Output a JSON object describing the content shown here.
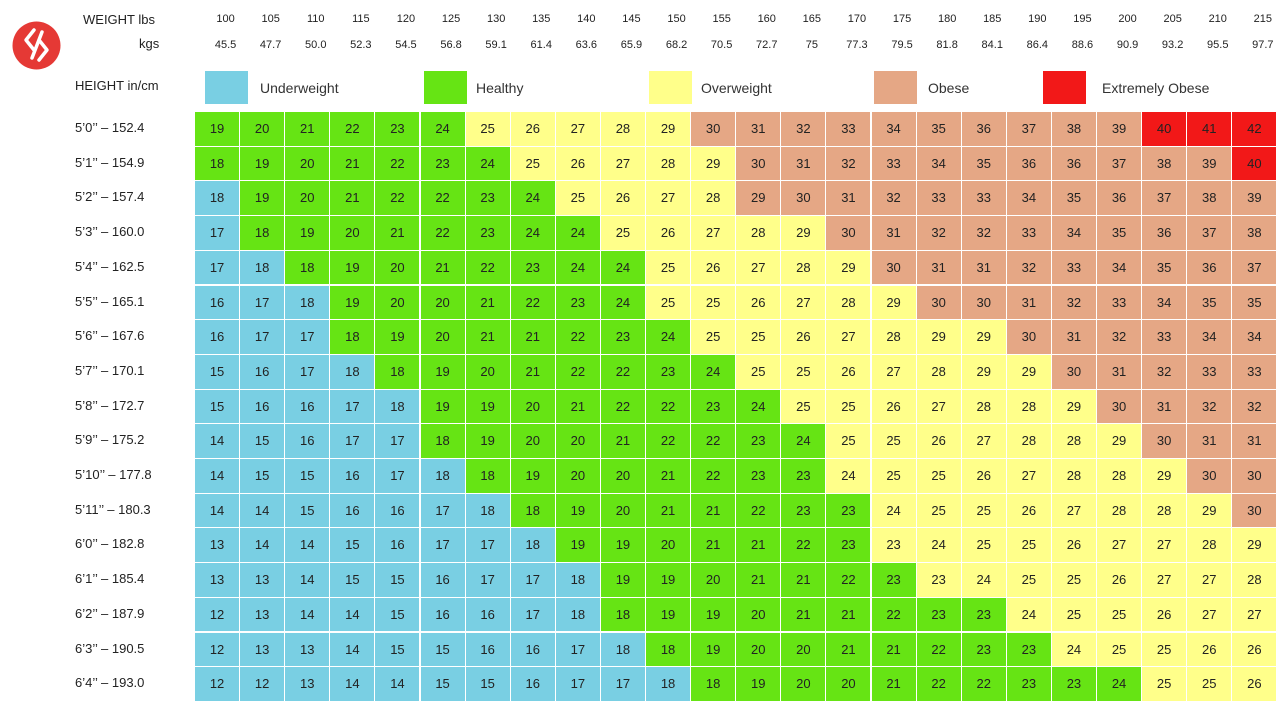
{
  "header": {
    "weight_lbs_label": "WEIGHT lbs",
    "weight_kgs_label": "kgs",
    "height_label": "HEIGHT in/cm"
  },
  "colors": {
    "underweight": "#79CFE3",
    "healthy": "#66E414",
    "overweight": "#FFFF8A",
    "obese": "#E5A785",
    "extremely_obese": "#F21818",
    "logo": "#E53935"
  },
  "logo_icon": "logo-icon",
  "chart_data": {
    "type": "heatmap",
    "title": "",
    "x_lbs": [
      "100",
      "105",
      "110",
      "115",
      "120",
      "125",
      "130",
      "135",
      "140",
      "145",
      "150",
      "155",
      "160",
      "165",
      "170",
      "175",
      "180",
      "185",
      "190",
      "195",
      "200",
      "205",
      "210",
      "215"
    ],
    "x_kgs": [
      "45.5",
      "47.7",
      "50.0",
      "52.3",
      "54.5",
      "56.8",
      "59.1",
      "61.4",
      "63.6",
      "65.9",
      "68.2",
      "70.5",
      "72.7",
      "75",
      "77.3",
      "79.5",
      "81.8",
      "84.1",
      "86.4",
      "88.6",
      "90.9",
      "93.2",
      "95.5",
      "97.7"
    ],
    "y_labels": [
      "5’0’’ – 152.4",
      "5’1’’ – 154.9",
      "5’2’’ – 157.4",
      "5’3’’ – 160.0",
      "5’4’’ – 162.5",
      "5’5’’ – 165.1",
      "5’6’’ – 167.6",
      "5’7’’ – 170.1",
      "5’8’’ – 172.7",
      "5’9’’ – 175.2",
      "5’10’’ – 177.8",
      "5’11’’ – 180.3",
      "6’0’’ – 182.8",
      "6’1’’ – 185.4",
      "6’2’’ – 187.9",
      "6’3’’ – 190.5",
      "6’4’’ – 193.0"
    ],
    "legend": [
      {
        "key": "U",
        "label": "Underweight"
      },
      {
        "key": "H",
        "label": "Healthy"
      },
      {
        "key": "O",
        "label": "Overweight"
      },
      {
        "key": "B",
        "label": "Obese"
      },
      {
        "key": "E",
        "label": "Extremely Obese"
      }
    ],
    "values": [
      [
        19,
        20,
        21,
        22,
        23,
        24,
        25,
        26,
        27,
        28,
        29,
        30,
        31,
        32,
        33,
        34,
        35,
        36,
        37,
        38,
        39,
        40,
        41,
        42
      ],
      [
        18,
        19,
        20,
        21,
        22,
        23,
        24,
        25,
        26,
        27,
        28,
        29,
        30,
        31,
        32,
        33,
        34,
        35,
        36,
        36,
        37,
        38,
        39,
        40
      ],
      [
        18,
        19,
        20,
        21,
        22,
        22,
        23,
        24,
        25,
        26,
        27,
        28,
        29,
        30,
        31,
        32,
        33,
        33,
        34,
        35,
        36,
        37,
        38,
        39
      ],
      [
        17,
        18,
        19,
        20,
        21,
        22,
        23,
        24,
        24,
        25,
        26,
        27,
        28,
        29,
        30,
        31,
        32,
        32,
        33,
        34,
        35,
        36,
        37,
        38
      ],
      [
        17,
        18,
        18,
        19,
        20,
        21,
        22,
        23,
        24,
        24,
        25,
        26,
        27,
        28,
        29,
        30,
        31,
        31,
        32,
        33,
        34,
        35,
        36,
        37
      ],
      [
        16,
        17,
        18,
        19,
        20,
        20,
        21,
        22,
        23,
        24,
        25,
        25,
        26,
        27,
        28,
        29,
        30,
        30,
        31,
        32,
        33,
        34,
        35,
        35
      ],
      [
        16,
        17,
        17,
        18,
        19,
        20,
        21,
        21,
        22,
        23,
        24,
        25,
        25,
        26,
        27,
        28,
        29,
        29,
        30,
        31,
        32,
        33,
        34,
        34
      ],
      [
        15,
        16,
        17,
        18,
        18,
        19,
        20,
        21,
        22,
        22,
        23,
        24,
        25,
        25,
        26,
        27,
        28,
        29,
        29,
        30,
        31,
        32,
        33,
        33
      ],
      [
        15,
        16,
        16,
        17,
        18,
        19,
        19,
        20,
        21,
        22,
        22,
        23,
        24,
        25,
        25,
        26,
        27,
        28,
        28,
        29,
        30,
        31,
        32,
        32
      ],
      [
        14,
        15,
        16,
        17,
        17,
        18,
        19,
        20,
        20,
        21,
        22,
        22,
        23,
        24,
        25,
        25,
        26,
        27,
        28,
        28,
        29,
        30,
        31,
        31
      ],
      [
        14,
        15,
        15,
        16,
        17,
        18,
        18,
        19,
        20,
        20,
        21,
        22,
        23,
        23,
        24,
        25,
        25,
        26,
        27,
        28,
        28,
        29,
        30,
        30
      ],
      [
        14,
        14,
        15,
        16,
        16,
        17,
        18,
        18,
        19,
        20,
        21,
        21,
        22,
        23,
        23,
        24,
        25,
        25,
        26,
        27,
        28,
        28,
        29,
        30
      ],
      [
        13,
        14,
        14,
        15,
        16,
        17,
        17,
        18,
        19,
        19,
        20,
        21,
        21,
        22,
        23,
        23,
        24,
        25,
        25,
        26,
        27,
        27,
        28,
        29
      ],
      [
        13,
        13,
        14,
        15,
        15,
        16,
        17,
        17,
        18,
        19,
        19,
        20,
        21,
        21,
        22,
        23,
        23,
        24,
        25,
        25,
        26,
        27,
        27,
        28
      ],
      [
        12,
        13,
        14,
        14,
        15,
        16,
        16,
        17,
        18,
        18,
        19,
        19,
        20,
        21,
        21,
        22,
        23,
        23,
        24,
        25,
        25,
        26,
        27,
        27
      ],
      [
        12,
        13,
        13,
        14,
        15,
        15,
        16,
        16,
        17,
        18,
        18,
        19,
        20,
        20,
        21,
        21,
        22,
        23,
        23,
        24,
        25,
        25,
        26,
        26
      ],
      [
        12,
        12,
        13,
        14,
        14,
        15,
        15,
        16,
        17,
        17,
        18,
        18,
        19,
        20,
        20,
        21,
        22,
        22,
        23,
        23,
        24,
        25,
        25,
        26
      ]
    ],
    "categories": [
      "HHHHHHOOOOOBBBBBBBBBBEEE",
      "HHHHHHHOOOOOBBBBBBBBBBBE",
      "UHHHHHHHOOOOBBBBBBBBBBBB",
      "UHHHHHHHHOOOOOBBBBBBBBBB",
      "UUHHHHHHHHOOOOOBBBBBBBBB",
      "UUUHHHHHHHOOOOOOBBBBBBBB",
      "UUUHHHHHHHHOOOOOOOBBBBBB",
      "UUUUHHHHHHHHOOOOOOOBBBBB",
      "UUUUUHHHHHHHHOOOOOOOBBBB",
      "UUUUUHHHHHHHHHOOOOOOOBBB",
      "UUUUUUHHHHHHHHOOOOOOOOBB",
      "UUUUUUUHHHHHHHHOOOOOOOOB",
      "UUUUUUUUHHHHHHHOOOOOOOOO",
      "UUUUUUUUUHHHHHHHOOOOOOOO",
      "UUUUUUUUUHHHHHHHHHOOOOOO",
      "UUUUUUUUUUHHHHHHHHHOOOOO",
      "UUUUUUUUUUUHHHHHHHHHHOOO"
    ]
  }
}
